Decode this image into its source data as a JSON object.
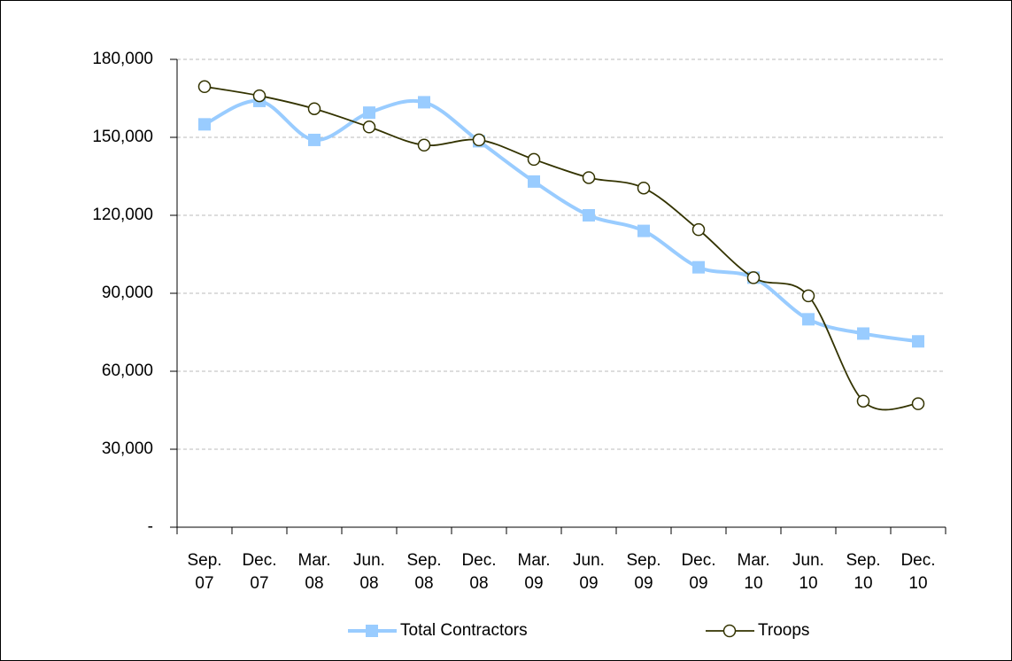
{
  "chart_data": {
    "type": "line",
    "categories": [
      [
        "Sep.",
        "07"
      ],
      [
        "Dec.",
        "07"
      ],
      [
        "Mar.",
        "08"
      ],
      [
        "Jun.",
        "08"
      ],
      [
        "Sep.",
        "08"
      ],
      [
        "Dec.",
        "08"
      ],
      [
        "Mar.",
        "09"
      ],
      [
        "Jun.",
        "09"
      ],
      [
        "Sep.",
        "09"
      ],
      [
        "Dec.",
        "09"
      ],
      [
        "Mar.",
        "10"
      ],
      [
        "Jun.",
        "10"
      ],
      [
        "Sep.",
        "10"
      ],
      [
        "Dec.",
        "10"
      ]
    ],
    "series": [
      {
        "name": "Total Contractors",
        "color": "#99ccff",
        "marker": "square",
        "values": [
          155000,
          164000,
          149000,
          159500,
          163500,
          148500,
          133000,
          120000,
          114000,
          100000,
          96000,
          80000,
          74500,
          71500
        ]
      },
      {
        "name": "Troops",
        "color": "#333300",
        "marker": "circle",
        "values": [
          169500,
          166000,
          161000,
          154000,
          147000,
          149000,
          141500,
          134500,
          130500,
          114500,
          96000,
          89000,
          48500,
          47500
        ]
      }
    ],
    "ylim": [
      0,
      180000
    ],
    "yticks": [
      {
        "value": 0,
        "label": "-"
      },
      {
        "value": 30000,
        "label": "30,000"
      },
      {
        "value": 60000,
        "label": "60,000"
      },
      {
        "value": 90000,
        "label": "90,000"
      },
      {
        "value": 120000,
        "label": "120,000"
      },
      {
        "value": 150000,
        "label": "150,000"
      },
      {
        "value": 180000,
        "label": "180,000"
      }
    ],
    "grid": true,
    "legend": "bottom"
  }
}
